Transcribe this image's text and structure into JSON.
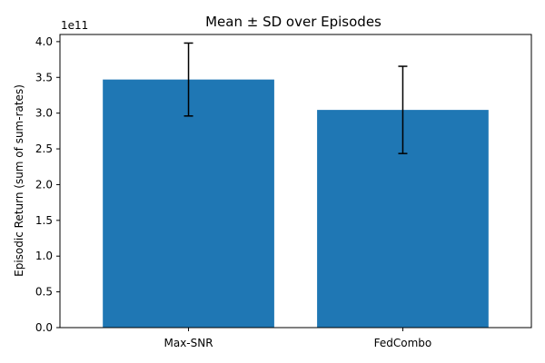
{
  "chart_data": {
    "type": "bar",
    "title": "Mean ± SD over Episodes",
    "xlabel": "",
    "ylabel": "Episodic Return (sum of sum-rates)",
    "scale_label": "1e11",
    "scale": 100000000000.0,
    "categories": [
      "Max-SNR",
      "FedCombo"
    ],
    "values": [
      347000000000,
      304500000000
    ],
    "errors": [
      51000000000,
      61000000000
    ],
    "ylim": [
      0,
      410000000000
    ],
    "yticks": [
      0,
      50000000000,
      100000000000,
      150000000000,
      200000000000,
      250000000000,
      300000000000,
      350000000000,
      400000000000
    ],
    "ytick_labels": [
      "0.0",
      "0.5",
      "1.0",
      "1.5",
      "2.0",
      "2.5",
      "3.0",
      "3.5",
      "4.0"
    ],
    "bar_color": "#1f77b4",
    "error_color": "#000000",
    "grid": false,
    "legend": "none"
  }
}
